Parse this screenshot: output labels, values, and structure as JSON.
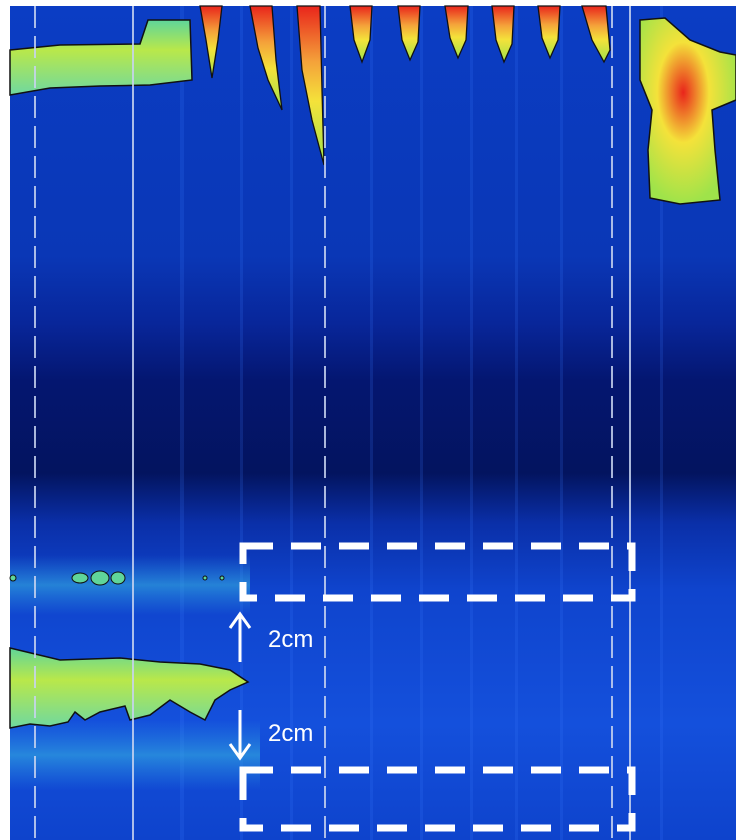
{
  "figure": {
    "label_upper": "2cm",
    "label_lower": "2cm"
  },
  "colors": {
    "background": "#0a37b8",
    "dark_band": "#03145f",
    "low": "#1e56e6",
    "mid": "#4fd6ad",
    "high_green": "#9fe34a",
    "yellow": "#f4e23a",
    "red": "#e9251b",
    "contour": "#111111",
    "annotation": "#ffffff",
    "border": "#ffffff"
  }
}
